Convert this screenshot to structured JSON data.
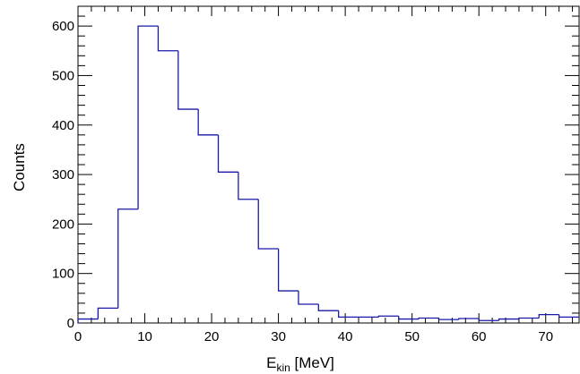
{
  "chart_data": {
    "type": "histogram",
    "xlabel_main": "E",
    "xlabel_sub": "kin",
    "xlabel_unit": " [MeV]",
    "ylabel": "Counts",
    "xlim": [
      0,
      75
    ],
    "ylim": [
      0,
      640
    ],
    "bin_width": 3,
    "bin_edges_start": 0,
    "values": [
      8,
      30,
      230,
      600,
      550,
      432,
      380,
      305,
      250,
      150,
      65,
      38,
      25,
      12,
      12,
      14,
      8,
      10,
      7,
      9,
      5,
      8,
      10,
      17,
      12
    ],
    "x_ticks": [
      0,
      10,
      20,
      30,
      40,
      50,
      60,
      70
    ],
    "y_ticks": [
      0,
      100,
      200,
      300,
      400,
      500,
      600
    ],
    "x_tick_labels": [
      "0",
      "10",
      "20",
      "30",
      "40",
      "50",
      "60",
      "70"
    ],
    "y_tick_labels": [
      "0",
      "100",
      "200",
      "300",
      "400",
      "500",
      "600"
    ],
    "line_color": "#1a1aa6",
    "grid": false
  }
}
